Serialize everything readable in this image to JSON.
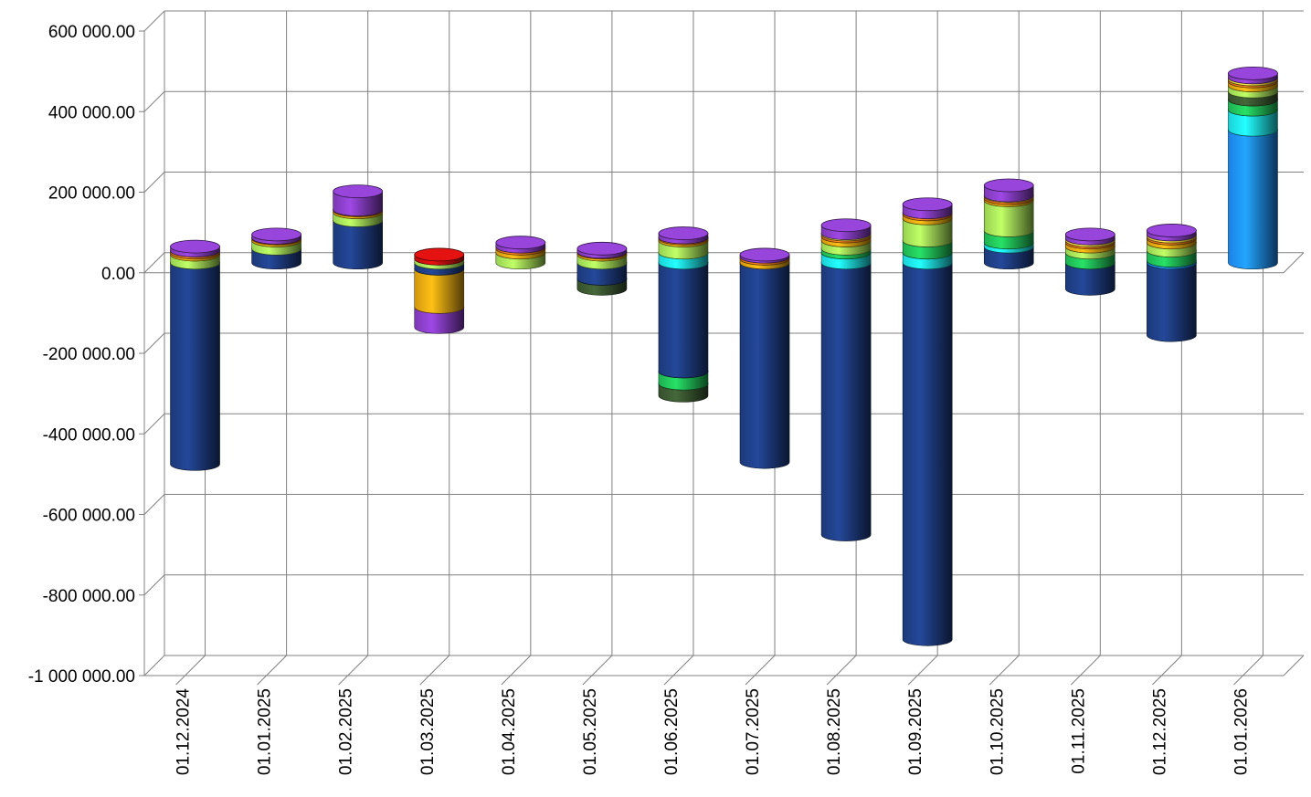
{
  "chart_data": {
    "type": "bar",
    "stacked": true,
    "style": "3d-cylinder",
    "title": "",
    "xlabel": "",
    "ylabel": "",
    "ylim": [
      -1000000,
      600000
    ],
    "y_ticks": [
      600000,
      400000,
      200000,
      0,
      -200000,
      -400000,
      -600000,
      -800000,
      -1000000
    ],
    "y_tick_labels": [
      "600 000.00",
      "400 000.00",
      "200 000.00",
      "0.00",
      "-200 000.00",
      "-400 000.00",
      "-600 000.00",
      "-800 000.00",
      "-1 000 000.00"
    ],
    "grid": true,
    "legend": "none",
    "categories": [
      "01.12.2024",
      "01.01.2025",
      "01.02.2025",
      "01.03.2025",
      "01.04.2025",
      "01.05.2025",
      "01.06.2025",
      "01.07.2025",
      "01.08.2025",
      "01.09.2025",
      "01.10.2025",
      "01.11.2025",
      "01.12.2025",
      "01.01.2026"
    ],
    "series_colors": [
      "#1f3f86",
      "#1e90ff",
      "#1ee8ee",
      "#22c45a",
      "#3c5a32",
      "#a8e85a",
      "#e8a812",
      "#e07818",
      "#f0d040",
      "#d01010",
      "#8a3fc8"
    ],
    "series": [
      {
        "color": "#1f3f86",
        "values": [
          -500000,
          35000,
          105000,
          -15000,
          0,
          -40000,
          -270000,
          -495000,
          -675000,
          -935000,
          40000,
          -65000,
          -180000,
          0
        ]
      },
      {
        "color": "#1e90ff",
        "values": [
          0,
          0,
          0,
          0,
          0,
          0,
          0,
          0,
          0,
          0,
          0,
          0,
          5000,
          330000
        ]
      },
      {
        "color": "#1ee8ee",
        "values": [
          0,
          0,
          0,
          0,
          0,
          0,
          25000,
          0,
          25000,
          25000,
          10000,
          0,
          0,
          50000
        ]
      },
      {
        "color": "#22c45a",
        "values": [
          0,
          0,
          0,
          0,
          0,
          0,
          -30000,
          0,
          10000,
          30000,
          30000,
          25000,
          25000,
          25000
        ]
      },
      {
        "color": "#3c5a32",
        "values": [
          0,
          0,
          0,
          0,
          0,
          -25000,
          -30000,
          0,
          0,
          0,
          0,
          0,
          0,
          20000
        ]
      },
      {
        "color": "#a8e85a",
        "values": [
          20000,
          20000,
          20000,
          10000,
          25000,
          20000,
          30000,
          0,
          20000,
          55000,
          75000,
          15000,
          20000,
          15000
        ]
      },
      {
        "color": "#e8a812",
        "values": [
          5000,
          5000,
          5000,
          -95000,
          10000,
          5000,
          5000,
          10000,
          10000,
          10000,
          5000,
          10000,
          10000,
          10000
        ]
      },
      {
        "color": "#e07818",
        "values": [
          5000,
          2000,
          2000,
          0,
          5000,
          2000,
          3000,
          5000,
          5000,
          5000,
          5000,
          5000,
          5000,
          5000
        ]
      },
      {
        "color": "#f0d040",
        "values": [
          0,
          0,
          0,
          0,
          0,
          0,
          0,
          0,
          3000,
          0,
          2000,
          5000,
          5000,
          5000
        ]
      },
      {
        "color": "#d01010",
        "values": [
          0,
          0,
          0,
          10000,
          0,
          0,
          0,
          0,
          0,
          0,
          0,
          0,
          0,
          0
        ]
      },
      {
        "color": "#8a3fc8",
        "values": [
          10000,
          8000,
          45000,
          -50000,
          10000,
          8000,
          10000,
          5000,
          20000,
          20000,
          25000,
          10000,
          10000,
          10000
        ]
      }
    ]
  }
}
